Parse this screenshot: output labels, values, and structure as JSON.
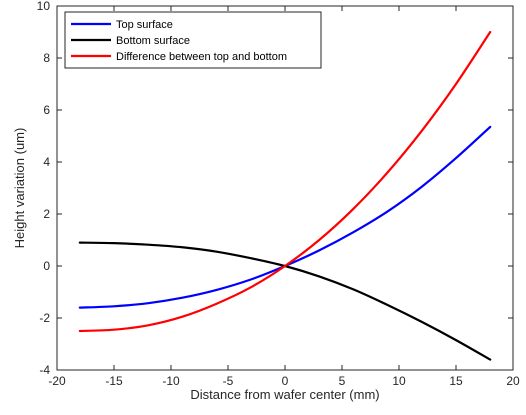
{
  "chart_data": {
    "type": "line",
    "title": "",
    "xlabel": "Distance from wafer center (mm)",
    "ylabel": "Height variation (um)",
    "xlim": [
      -20,
      20
    ],
    "ylim": [
      -4,
      10
    ],
    "xticks": [
      -20,
      -15,
      -10,
      -5,
      0,
      5,
      10,
      15,
      20
    ],
    "yticks": [
      -4,
      -2,
      0,
      2,
      4,
      6,
      8,
      10
    ],
    "grid": false,
    "legend_position": "top-left",
    "series": [
      {
        "name": "Top surface",
        "color": "#0000ff",
        "x": [
          -18,
          -15,
          -12,
          -9,
          -6,
          -3,
          0,
          3,
          6,
          9,
          12,
          15,
          18
        ],
        "y": [
          -1.6,
          -1.55,
          -1.43,
          -1.22,
          -0.92,
          -0.52,
          0.0,
          0.6,
          1.3,
          2.1,
          3.05,
          4.15,
          5.35
        ]
      },
      {
        "name": "Bottom surface",
        "color": "#000000",
        "x": [
          -18,
          -15,
          -12,
          -9,
          -6,
          -3,
          0,
          3,
          6,
          9,
          12,
          15,
          18
        ],
        "y": [
          0.9,
          0.88,
          0.82,
          0.72,
          0.55,
          0.3,
          0.0,
          -0.4,
          -0.9,
          -1.5,
          -2.15,
          -2.85,
          -3.6
        ]
      },
      {
        "name": "Difference between top and bottom",
        "color": "#ff0000",
        "x": [
          -18,
          -15,
          -12,
          -9,
          -6,
          -3,
          0,
          3,
          6,
          9,
          12,
          15,
          18
        ],
        "y": [
          -2.5,
          -2.45,
          -2.28,
          -1.95,
          -1.45,
          -0.82,
          0.0,
          1.0,
          2.2,
          3.6,
          5.2,
          7.0,
          9.0
        ]
      }
    ]
  }
}
